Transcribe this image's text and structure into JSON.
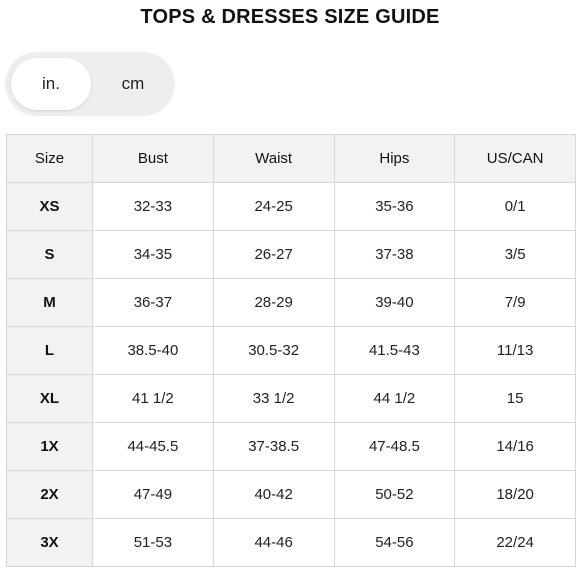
{
  "title": "TOPS & DRESSES SIZE GUIDE",
  "units": {
    "selected": "in.",
    "options": [
      "in.",
      "cm"
    ]
  },
  "table": {
    "headers": [
      "Size",
      "Bust",
      "Waist",
      "Hips",
      "US/CAN"
    ],
    "rows": [
      [
        "XS",
        "32-33",
        "24-25",
        "35-36",
        "0/1"
      ],
      [
        "S",
        "34-35",
        "26-27",
        "37-38",
        "3/5"
      ],
      [
        "M",
        "36-37",
        "28-29",
        "39-40",
        "7/9"
      ],
      [
        "L",
        "38.5-40",
        "30.5-32",
        "41.5-43",
        "11/13"
      ],
      [
        "XL",
        "41 1/2",
        "33 1/2",
        "44 1/2",
        "15"
      ],
      [
        "1X",
        "44-45.5",
        "37-38.5",
        "47-48.5",
        "14/16"
      ],
      [
        "2X",
        "47-49",
        "40-42",
        "50-52",
        "18/20"
      ],
      [
        "3X",
        "51-53",
        "44-46",
        "54-56",
        "22/24"
      ]
    ]
  },
  "colors": {
    "header_bg": "#f2f2f2",
    "border": "#d6d6d6",
    "toggle_bg": "#eeeeee"
  }
}
